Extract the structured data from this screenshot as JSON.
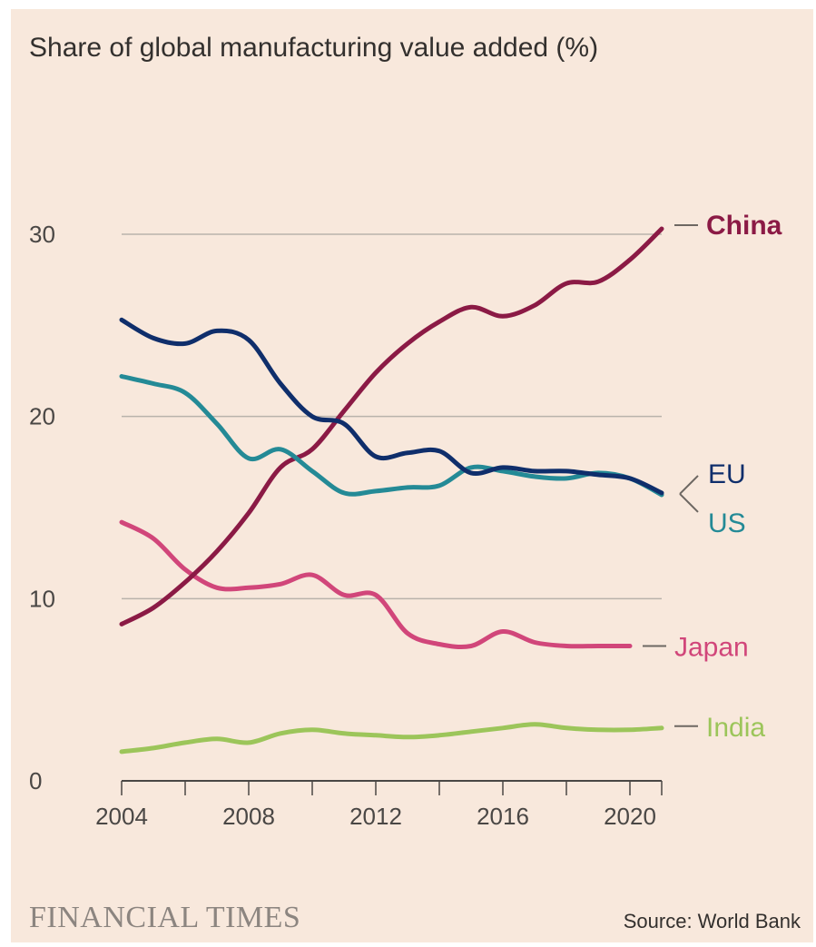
{
  "header": {
    "title": "Share of global manufacturing value added (%)"
  },
  "footer": {
    "brand": "FINANCIAL TIMES",
    "source": "Source: World Bank"
  },
  "colors": {
    "background": "#f8e8dc",
    "China": "#8b1a45",
    "EU": "#0f2e6b",
    "US": "#248a96",
    "Japan": "#d1467a",
    "India": "#9cc55a",
    "grid": "#b9b2ab"
  },
  "chart_data": {
    "type": "line",
    "title": "Share of global manufacturing value added (%)",
    "xlabel": "",
    "ylabel": "",
    "xlim": [
      2004,
      2021
    ],
    "ylim": [
      0,
      30
    ],
    "x_ticks": [
      2004,
      2008,
      2012,
      2016,
      2020
    ],
    "y_ticks": [
      0,
      10,
      20,
      30
    ],
    "grid": "horizontal",
    "legend": "direct labels at line ends",
    "series": [
      {
        "name": "China",
        "x": [
          2004,
          2005,
          2006,
          2007,
          2008,
          2009,
          2010,
          2011,
          2012,
          2013,
          2014,
          2015,
          2016,
          2017,
          2018,
          2019,
          2020,
          2021
        ],
        "values": [
          8.6,
          9.5,
          10.9,
          12.6,
          14.7,
          17.2,
          18.2,
          20.3,
          22.4,
          24.0,
          25.2,
          26.0,
          25.5,
          26.1,
          27.3,
          27.4,
          28.6,
          30.3
        ]
      },
      {
        "name": "EU",
        "x": [
          2004,
          2005,
          2006,
          2007,
          2008,
          2009,
          2010,
          2011,
          2012,
          2013,
          2014,
          2015,
          2016,
          2017,
          2018,
          2019,
          2020,
          2021
        ],
        "values": [
          25.3,
          24.3,
          24.0,
          24.7,
          24.2,
          21.8,
          20.0,
          19.6,
          17.8,
          18.0,
          18.1,
          16.9,
          17.2,
          17.0,
          17.0,
          16.8,
          16.6,
          15.8
        ]
      },
      {
        "name": "US",
        "x": [
          2004,
          2005,
          2006,
          2007,
          2008,
          2009,
          2010,
          2011,
          2012,
          2013,
          2014,
          2015,
          2016,
          2017,
          2018,
          2019,
          2020,
          2021
        ],
        "values": [
          22.2,
          21.8,
          21.3,
          19.6,
          17.7,
          18.2,
          17.0,
          15.8,
          15.9,
          16.1,
          16.2,
          17.2,
          17.0,
          16.7,
          16.6,
          16.9,
          16.6,
          15.7
        ]
      },
      {
        "name": "Japan",
        "x": [
          2004,
          2005,
          2006,
          2007,
          2008,
          2009,
          2010,
          2011,
          2012,
          2013,
          2014,
          2015,
          2016,
          2017,
          2018,
          2019,
          2020
        ],
        "values": [
          14.2,
          13.3,
          11.6,
          10.6,
          10.6,
          10.8,
          11.3,
          10.2,
          10.2,
          8.1,
          7.5,
          7.4,
          8.2,
          7.6,
          7.4,
          7.4,
          7.4
        ]
      },
      {
        "name": "India",
        "x": [
          2004,
          2005,
          2006,
          2007,
          2008,
          2009,
          2010,
          2011,
          2012,
          2013,
          2014,
          2015,
          2016,
          2017,
          2018,
          2019,
          2020,
          2021
        ],
        "values": [
          1.6,
          1.8,
          2.1,
          2.3,
          2.1,
          2.6,
          2.8,
          2.6,
          2.5,
          2.4,
          2.5,
          2.7,
          2.9,
          3.1,
          2.9,
          2.8,
          2.8,
          2.9
        ]
      }
    ]
  }
}
